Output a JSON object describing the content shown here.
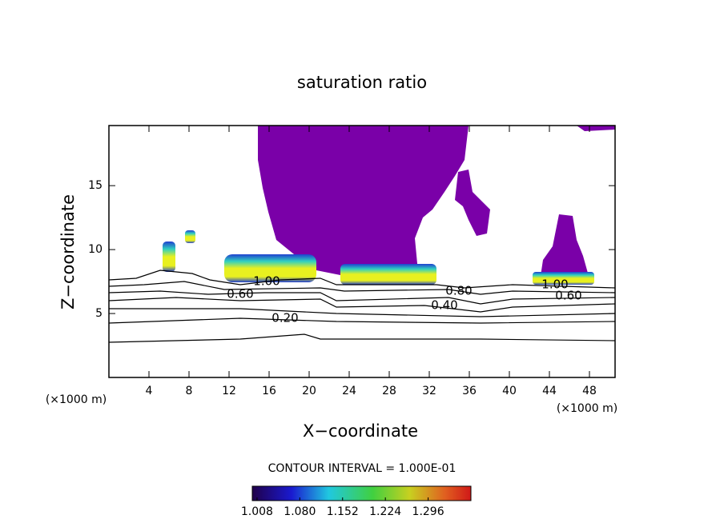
{
  "chart_data": {
    "type": "contour",
    "title": "saturation ratio",
    "x_label": "X−coordinate",
    "y_label": "Z−coordinate",
    "x_scale_label": "(×1000 m)",
    "y_scale_label": "(×1000 m)",
    "xlim": [
      0,
      50.56
    ],
    "ylim": [
      0,
      19.7
    ],
    "xticks": [
      4,
      8,
      12,
      16,
      20,
      24,
      28,
      32,
      36,
      40,
      44,
      48
    ],
    "yticks": [
      5,
      10,
      15
    ],
    "contour_levels": [
      {
        "value": 0.2,
        "label": "0.20"
      },
      {
        "value": 0.4,
        "label": "0.40"
      },
      {
        "value": 0.6,
        "label": "0.60"
      },
      {
        "value": 0.8,
        "label": "0.80"
      },
      {
        "value": 1.0,
        "label": "1.00"
      }
    ],
    "contour_interval_text": "CONTOUR INTERVAL = 1.000E-01",
    "clim": [
      1.0,
      1.368
    ],
    "colorbar_ticks": [
      1.008,
      {
        "value": 1.08,
        "label": "1.080"
      },
      1.152,
      1.224,
      1.296
    ]
  }
}
